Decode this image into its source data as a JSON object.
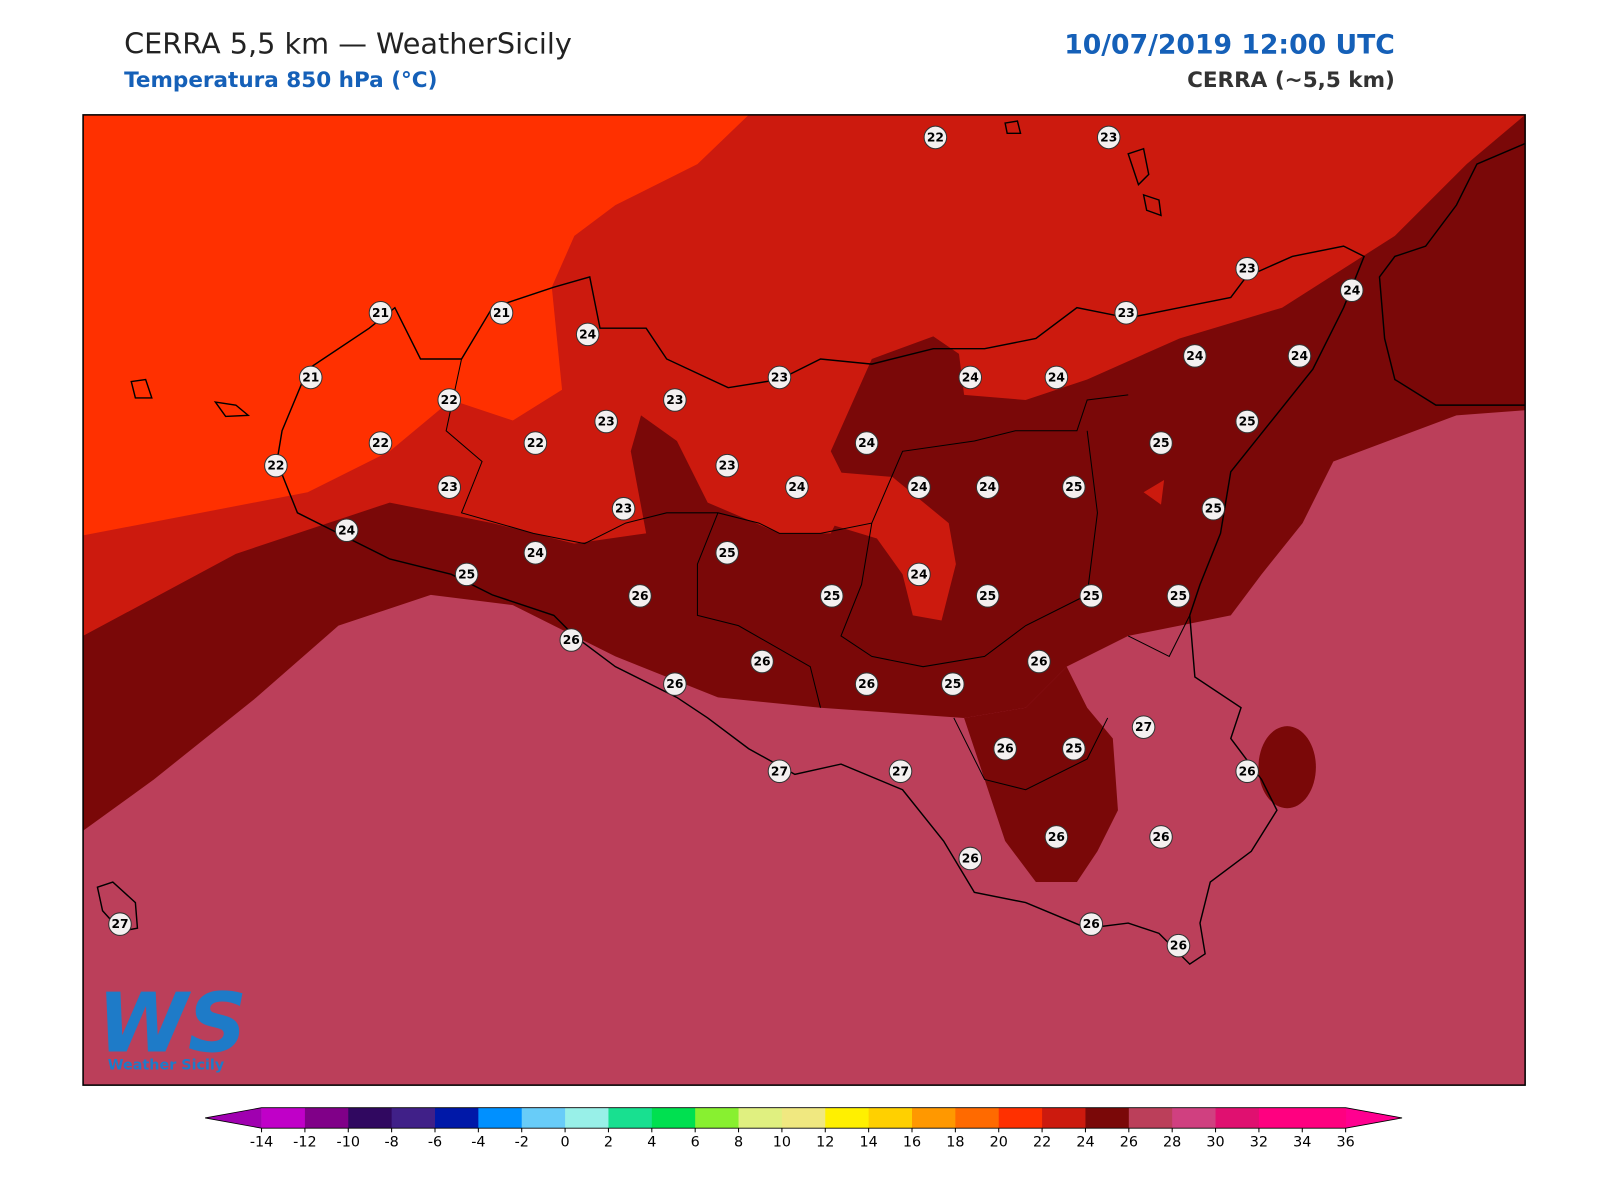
{
  "header": {
    "title": "CERRA 5,5 km — WeatherSicily",
    "subtitle": "Temperatura 850 hPa (°C)",
    "datetime": "10/07/2019 12:00 UTC",
    "model": "CERRA (~5,5 km)"
  },
  "stations": [
    22,
    23,
    21,
    21,
    24,
    21,
    22,
    23,
    23,
    23,
    22,
    22,
    22,
    23,
    23,
    23,
    24,
    24,
    24,
    24,
    24,
    24,
    23,
    23,
    24,
    24,
    24,
    25,
    25,
    25,
    25,
    24,
    24,
    25,
    25,
    26,
    25,
    24,
    25,
    25,
    25,
    26,
    26,
    26,
    26,
    26,
    25,
    27,
    26,
    25,
    27,
    27,
    26,
    26,
    26,
    26,
    26,
    26,
    27
  ],
  "colorbar": {
    "ticks": [
      -14,
      -12,
      -10,
      -8,
      -6,
      -4,
      -2,
      0,
      2,
      4,
      6,
      8,
      10,
      12,
      14,
      16,
      18,
      20,
      22,
      24,
      26,
      28,
      30,
      32,
      34,
      36
    ],
    "colors": [
      "#c000c8",
      "#800088",
      "#300860",
      "#402088",
      "#0018a8",
      "#0090ff",
      "#68ccf8",
      "#98f0e8",
      "#18e090",
      "#00e050",
      "#88f030",
      "#e0f080",
      "#f0e880",
      "#fff000",
      "#ffd000",
      "#ff9800",
      "#ff6a00",
      "#ff3000",
      "#cc1a0e",
      "#7a0808",
      "#bb3f5a",
      "#d04080",
      "#e01070",
      "#ff0080",
      "#ff0080"
    ],
    "under": "#a000b0",
    "over": "#ff0090"
  },
  "logo": {
    "mark": "WS",
    "name": "Weather Sicily"
  }
}
